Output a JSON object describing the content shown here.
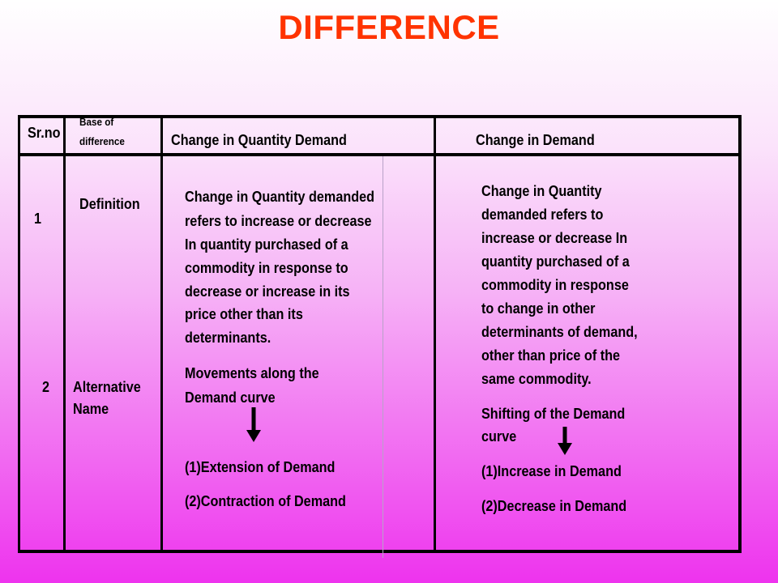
{
  "title": "DIFFERENCE",
  "headers": {
    "srno": "Sr.no",
    "base_line1": "Base of",
    "base_line2": "difference",
    "col1": "Change in Quantity Demand",
    "col2": "Change in Demand"
  },
  "rows": [
    {
      "number": "1",
      "base": "Definition",
      "col1_lines": [
        "Change in Quantity demanded",
        "refers to increase or decrease",
        "In quantity purchased of a",
        "commodity in response to",
        "decrease or increase in its",
        "price other than its",
        "determinants."
      ],
      "col2_lines": [
        "Change in Quantity",
        "demanded refers to",
        "increase or decrease In",
        "quantity purchased of a",
        "commodity in response",
        "to change in other",
        "determinants of demand,",
        "other than price of the",
        "same commodity."
      ]
    },
    {
      "number": "2",
      "base_line1": "Alternative",
      "base_line2": "Name",
      "col1_lines": [
        "Movements  along  the",
        "Demand curve"
      ],
      "col1_items": [
        "(1)Extension of Demand",
        "(2)Contraction of Demand"
      ],
      "col2_lines": [
        "Shifting  of the Demand",
        "curve"
      ],
      "col2_items": [
        "(1)Increase in Demand",
        "(2)Decrease in Demand"
      ]
    }
  ],
  "icons": [
    "down-arrow-icon",
    "down-arrow-icon"
  ]
}
